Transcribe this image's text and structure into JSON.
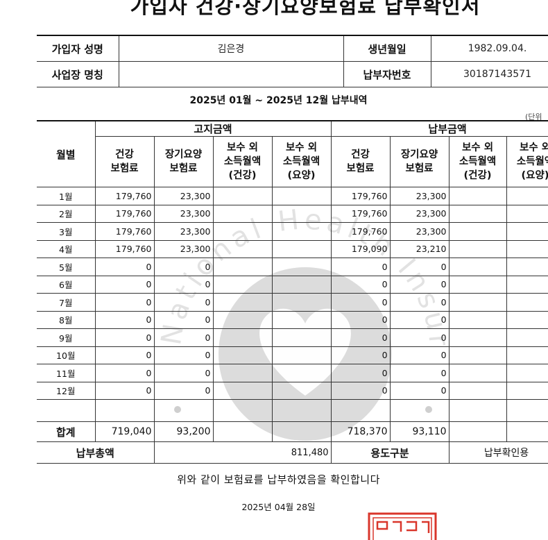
{
  "title": "가입자 건강·장기요양보험료 납부확인서",
  "info": {
    "name_label": "가입자 성명",
    "name_value": "김은경",
    "birth_label": "생년월일",
    "birth_value": "1982.09.04.",
    "workplace_label": "사업장 명칭",
    "workplace_value": "",
    "payer_no_label": "납부자번호",
    "payer_no_value": "30187143571"
  },
  "period": "2025년 01월 ~ 2025년 12월 납부내역",
  "unit": "(단위",
  "table": {
    "month_header": "월별",
    "billed_header": "고지금액",
    "paid_header": "납부금액",
    "col_health": "건강\n보험료",
    "col_ltc": "장기요양\n보험료",
    "col_extra_health": "보수 외\n소득월액\n(건강)",
    "col_extra_ltc": "보수 외\n소득월액\n(요양)",
    "rows": [
      {
        "month": "1월",
        "bh": "179,760",
        "bl": "23,300",
        "ph": "179,760",
        "pl": "23,300"
      },
      {
        "month": "2월",
        "bh": "179,760",
        "bl": "23,300",
        "ph": "179,760",
        "pl": "23,300"
      },
      {
        "month": "3월",
        "bh": "179,760",
        "bl": "23,300",
        "ph": "179,760",
        "pl": "23,300"
      },
      {
        "month": "4월",
        "bh": "179,760",
        "bl": "23,300",
        "ph": "179,090",
        "pl": "23,210"
      },
      {
        "month": "5월",
        "bh": "0",
        "bl": "0",
        "ph": "0",
        "pl": "0"
      },
      {
        "month": "6월",
        "bh": "0",
        "bl": "0",
        "ph": "0",
        "pl": "0"
      },
      {
        "month": "7월",
        "bh": "0",
        "bl": "0",
        "ph": "0",
        "pl": "0"
      },
      {
        "month": "8월",
        "bh": "0",
        "bl": "0",
        "ph": "0",
        "pl": "0"
      },
      {
        "month": "9월",
        "bh": "0",
        "bl": "0",
        "ph": "0",
        "pl": "0"
      },
      {
        "month": "10월",
        "bh": "0",
        "bl": "0",
        "ph": "0",
        "pl": "0"
      },
      {
        "month": "11월",
        "bh": "0",
        "bl": "0",
        "ph": "0",
        "pl": "0"
      },
      {
        "month": "12월",
        "bh": "0",
        "bl": "0",
        "ph": "0",
        "pl": "0"
      }
    ],
    "total_label": "합계",
    "total_bh": "719,040",
    "total_bl": "93,200",
    "total_ph": "718,370",
    "total_pl": "93,110",
    "grand_label": "납부총액",
    "grand_value": "811,480",
    "purpose_label": "용도구분",
    "purpose_value": "납부확인용"
  },
  "confirm_text": "위와 같이 보험료를 납부하였음을 확인합니다",
  "issue_date": "2025년 04월 28일",
  "watermark_text": "National Health Insurance Service",
  "colors": {
    "seal": "#d9362b",
    "watermark": "#cfcfcf",
    "border": "#333333"
  }
}
